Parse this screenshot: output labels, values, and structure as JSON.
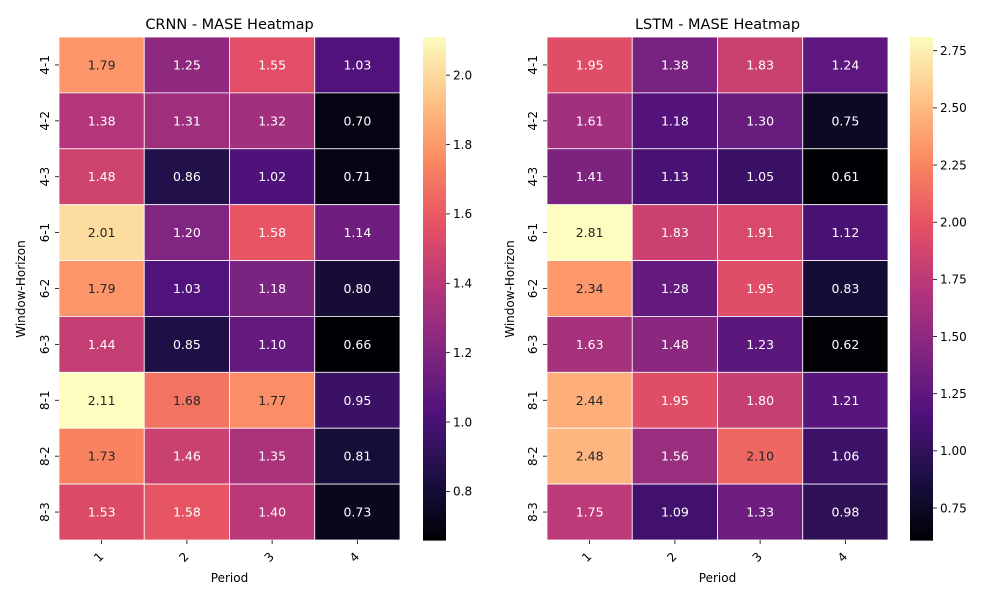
{
  "chart_data": [
    {
      "type": "heatmap",
      "title": "CRNN - MASE Heatmap",
      "xlabel": "Period",
      "ylabel": "Window-Horizon",
      "x_categories": [
        "1",
        "2",
        "3",
        "4"
      ],
      "y_categories": [
        "4-1",
        "4-2",
        "4-3",
        "6-1",
        "6-2",
        "6-3",
        "8-1",
        "8-2",
        "8-3"
      ],
      "values": [
        [
          1.79,
          1.25,
          1.55,
          1.03
        ],
        [
          1.38,
          1.31,
          1.32,
          0.7
        ],
        [
          1.48,
          0.86,
          1.02,
          0.71
        ],
        [
          2.01,
          1.2,
          1.58,
          1.14
        ],
        [
          1.79,
          1.03,
          1.18,
          0.8
        ],
        [
          1.44,
          0.85,
          1.1,
          0.66
        ],
        [
          2.11,
          1.68,
          1.77,
          0.95
        ],
        [
          1.73,
          1.46,
          1.35,
          0.81
        ],
        [
          1.53,
          1.58,
          1.4,
          0.73
        ]
      ],
      "colormap": "magma",
      "colorbar": {
        "vmin": 0.66,
        "vmax": 2.11,
        "ticks": [
          "0.8",
          "1.0",
          "1.2",
          "1.4",
          "1.6",
          "1.8",
          "2.0"
        ]
      }
    },
    {
      "type": "heatmap",
      "title": "LSTM - MASE Heatmap",
      "xlabel": "Period",
      "ylabel": "Window-Horizon",
      "x_categories": [
        "1",
        "2",
        "3",
        "4"
      ],
      "y_categories": [
        "4-1",
        "4-2",
        "4-3",
        "6-1",
        "6-2",
        "6-3",
        "8-1",
        "8-2",
        "8-3"
      ],
      "values": [
        [
          1.95,
          1.38,
          1.83,
          1.24
        ],
        [
          1.61,
          1.18,
          1.3,
          0.75
        ],
        [
          1.41,
          1.13,
          1.05,
          0.61
        ],
        [
          2.81,
          1.83,
          1.91,
          1.12
        ],
        [
          2.34,
          1.28,
          1.95,
          0.83
        ],
        [
          1.63,
          1.48,
          1.23,
          0.62
        ],
        [
          2.44,
          1.95,
          1.8,
          1.21
        ],
        [
          2.48,
          1.56,
          2.1,
          1.06
        ],
        [
          1.75,
          1.09,
          1.33,
          0.98
        ]
      ],
      "colormap": "magma",
      "colorbar": {
        "vmin": 0.61,
        "vmax": 2.81,
        "ticks": [
          "0.75",
          "1.00",
          "1.25",
          "1.50",
          "1.75",
          "2.00",
          "2.25",
          "2.50",
          "2.75"
        ]
      }
    }
  ]
}
